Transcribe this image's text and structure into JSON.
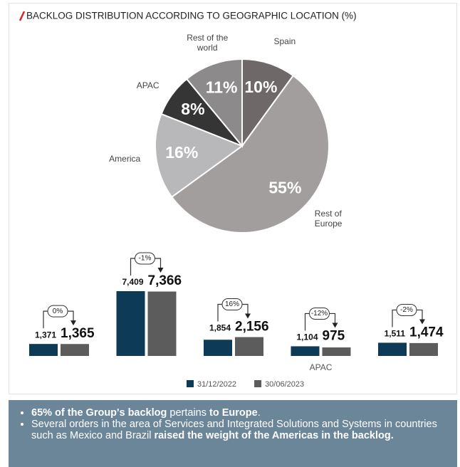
{
  "chart_data": [
    {
      "type": "pie",
      "title": "BACKLOG DISTRIBUTION ACCORDING TO GEOGRAPHIC LOCATION (%)",
      "categories": [
        "Spain",
        "Rest of Europe",
        "America",
        "APAC",
        "Rest of the world"
      ],
      "values": [
        10,
        55,
        16,
        8,
        11
      ],
      "value_labels": [
        "10%",
        "55%",
        "16%",
        "8%",
        "11%"
      ],
      "colors": [
        "#6e6868",
        "#a39e9e",
        "#b8b8ba",
        "#353535",
        "#8c8a8a"
      ]
    },
    {
      "type": "bar",
      "categories": [
        null,
        null,
        null,
        "APAC",
        null
      ],
      "series": [
        {
          "name": "31/12/2022",
          "color": "#0d3b57",
          "values": [
            1371,
            7409,
            1854,
            1104,
            1511
          ],
          "value_labels": [
            "1,371",
            "7,409",
            "1,854",
            "1,104",
            "1,511"
          ]
        },
        {
          "name": "30/06/2023",
          "color": "#5c5c5c",
          "values": [
            1365,
            7366,
            2156,
            975,
            1474
          ],
          "value_labels": [
            "1,365",
            "7,366",
            "2,156",
            "975",
            "1,474"
          ]
        }
      ],
      "annotations": [
        "0%",
        "-1%",
        "16%",
        "-12%",
        "-2%"
      ]
    }
  ],
  "footer": {
    "bullets": [
      [
        {
          "text": "65% of the Group's backlog",
          "bold": true
        },
        {
          "text": " pertains ",
          "bold": false
        },
        {
          "text": "to Europe",
          "bold": true
        },
        {
          "text": ".",
          "bold": false
        }
      ],
      [
        {
          "text": "Several orders in the area of Services and Integrated Solutions and Systems in countries such as Mexico and Brazil ",
          "bold": false
        },
        {
          "text": "raised the weight of the Americas in the backlog.",
          "bold": true
        }
      ]
    ]
  }
}
